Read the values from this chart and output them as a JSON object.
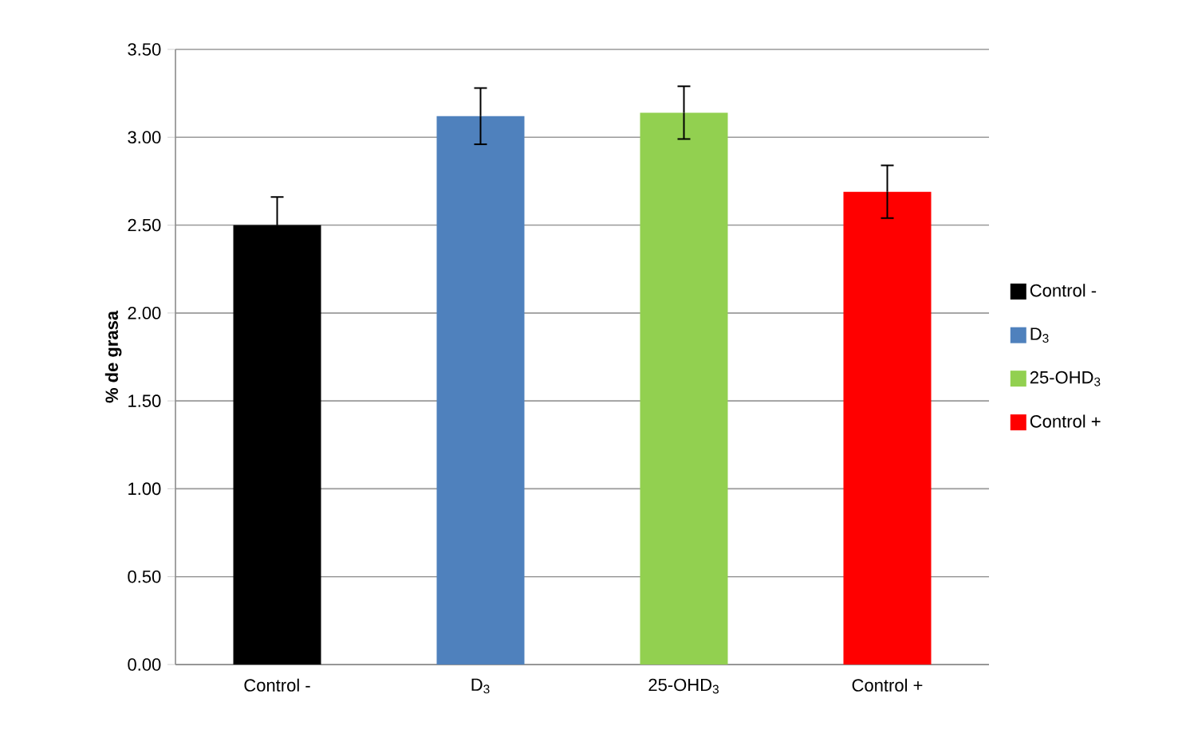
{
  "chart_data": {
    "type": "bar",
    "ylabel": "% de grasa",
    "categories": [
      "Control -",
      "D$_{3}$",
      "25-OHD$_{3}$",
      "Control +"
    ],
    "series": [
      {
        "name": "Control -",
        "color": "#000000",
        "values": [
          2.5,
          null,
          null,
          null
        ],
        "errors": [
          0.16,
          null,
          null,
          null
        ]
      },
      {
        "name": "D$_{3}$",
        "color": "#4f81bd",
        "values": [
          null,
          3.12,
          null,
          null
        ],
        "errors": [
          null,
          0.16,
          null,
          null
        ]
      },
      {
        "name": "25-OHD$_{3}$",
        "color": "#92d050",
        "values": [
          null,
          null,
          3.14,
          null
        ],
        "errors": [
          null,
          null,
          0.15,
          null
        ]
      },
      {
        "name": "Control +",
        "color": "#ff0000",
        "values": [
          null,
          null,
          null,
          2.69
        ],
        "errors": [
          null,
          null,
          null,
          0.15
        ]
      }
    ],
    "ylim": [
      0,
      3.5
    ],
    "yticks": [
      {
        "value": 0,
        "label": "0.00"
      },
      {
        "value": 0.5,
        "label": "0.50"
      },
      {
        "value": 1,
        "label": "1.00"
      },
      {
        "value": 1.5,
        "label": "1.50"
      },
      {
        "value": 2,
        "label": "2.00"
      },
      {
        "value": 2.5,
        "label": "2.50"
      },
      {
        "value": 3,
        "label": "3.00"
      },
      {
        "value": 3.5,
        "label": "3.50"
      }
    ],
    "grid": "y",
    "legend": "right"
  }
}
